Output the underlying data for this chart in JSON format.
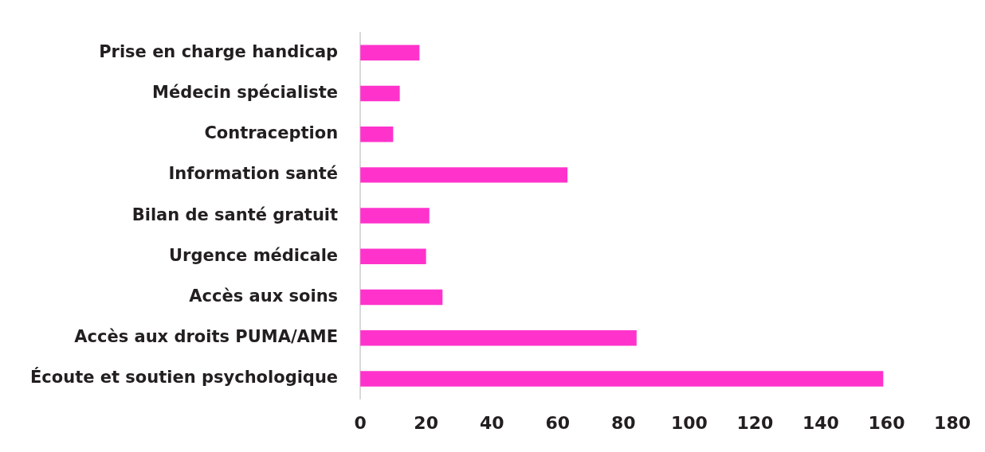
{
  "chart_data": {
    "type": "bar",
    "orientation": "horizontal",
    "categories": [
      "Prise en charge handicap",
      "Médecin spécialiste",
      "Contraception",
      "Information santé",
      "Bilan de santé gratuit",
      "Urgence médicale",
      "Accès aux soins",
      "Accès aux droits PUMA/AME",
      "Écoute et soutien psychologique"
    ],
    "values": [
      18,
      12,
      10,
      63,
      21,
      20,
      25,
      84,
      159
    ],
    "color": "#ff33cc",
    "xlim": [
      0,
      180
    ],
    "xticks": [
      0,
      20,
      40,
      60,
      80,
      100,
      120,
      140,
      160,
      180
    ],
    "grid": false,
    "legend": false
  }
}
